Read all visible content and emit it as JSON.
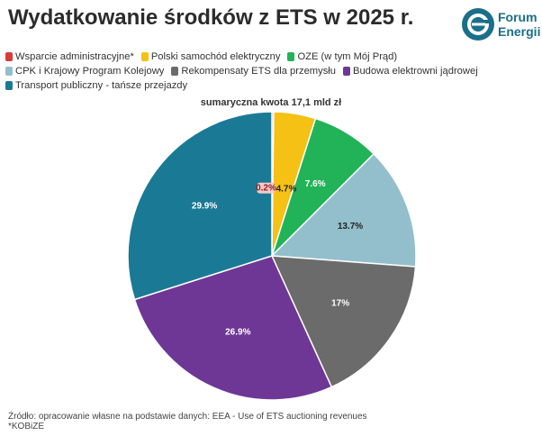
{
  "header": {
    "title": "Wydatkowanie środków z ETS w 2025 r.",
    "logo": {
      "line1": "Forum",
      "line2": "Energii",
      "color": "#1a6f8a"
    }
  },
  "chart_data": {
    "type": "pie",
    "title": "sumaryczna kwota 17,1 mld zł",
    "legend_position": "top-left",
    "slices": [
      {
        "name": "Wsparcie administracyjne*",
        "value": 0.2,
        "label": "0.2%",
        "color": "#d93a3a"
      },
      {
        "name": "Polski samochód elektryczny",
        "value": 4.7,
        "label": "4.7%",
        "color": "#f5c114"
      },
      {
        "name": "OZE (w tym Mój Prąd)",
        "value": 7.6,
        "label": "7.6%",
        "color": "#22b358"
      },
      {
        "name": "CPK i Krajowy Program Kolejowy",
        "value": 13.7,
        "label": "13.7%",
        "color": "#93bfcc"
      },
      {
        "name": "Rekompensaty ETS dla przemysłu",
        "value": 17,
        "label": "17%",
        "color": "#6b6b6b"
      },
      {
        "name": "Budowa elektrowni jądrowej",
        "value": 26.9,
        "label": "26.9%",
        "color": "#6e3796"
      },
      {
        "name": "Transport publiczny - tańsze przejazdy",
        "value": 29.9,
        "label": "29.9%",
        "color": "#1a7a96"
      }
    ]
  },
  "footer": {
    "source": "Źródło: opracowanie własne na podstawie danych: EEA - Use of ETS auctioning revenues",
    "note": "*KOBiZE"
  }
}
